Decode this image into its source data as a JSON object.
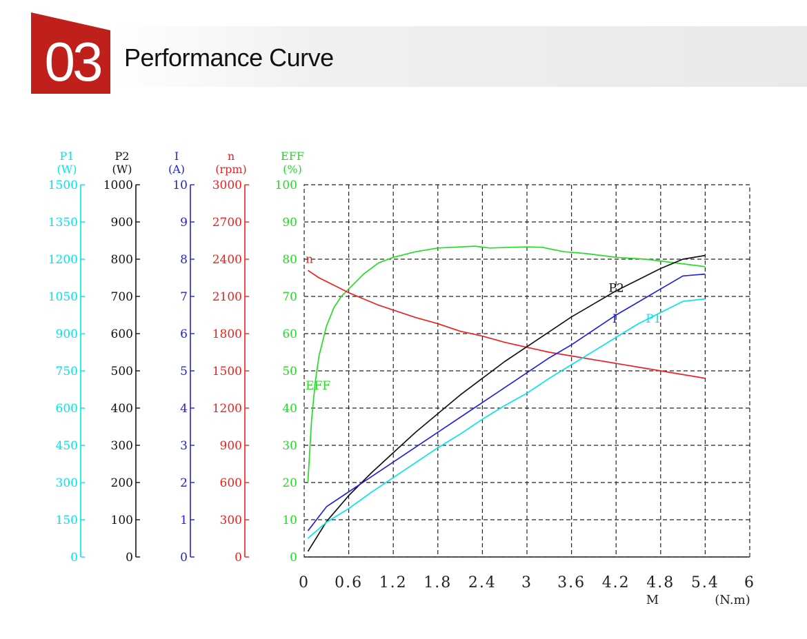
{
  "header": {
    "section_number": "03",
    "title": "Performance Curve",
    "accent_color": "#c0201c"
  },
  "chart_data": {
    "type": "line",
    "title": "",
    "xlabel": "M",
    "xunit": "(N.m)",
    "xlim": [
      0,
      6
    ],
    "x_ticks": [
      "0",
      "0.6",
      "1.2",
      "1.8",
      "2.4",
      "3",
      "3.6",
      "4.2",
      "4.8",
      "5.4",
      "6"
    ],
    "grid": true,
    "axes": [
      {
        "name": "P1",
        "unit": "(W)",
        "color": "#00e5ee",
        "min": 0,
        "max": 1500,
        "ticks": [
          "0",
          "150",
          "300",
          "450",
          "600",
          "750",
          "900",
          "1050",
          "1200",
          "1350",
          "1500"
        ]
      },
      {
        "name": "P2",
        "unit": "(W)",
        "color": "#111111",
        "min": 0,
        "max": 1000,
        "ticks": [
          "0",
          "100",
          "200",
          "300",
          "400",
          "500",
          "600",
          "700",
          "800",
          "900",
          "1000"
        ]
      },
      {
        "name": "I",
        "unit": "(A)",
        "color": "#2020e0",
        "min": 0,
        "max": 10,
        "ticks": [
          "0",
          "1",
          "2",
          "3",
          "4",
          "5",
          "6",
          "7",
          "8",
          "9",
          "10"
        ]
      },
      {
        "name": "n",
        "unit": "(rpm)",
        "color": "#ee2020",
        "min": 0,
        "max": 3000,
        "ticks": [
          "0",
          "300",
          "600",
          "900",
          "1200",
          "1500",
          "1800",
          "2100",
          "2400",
          "2700",
          "3000"
        ]
      },
      {
        "name": "EFF",
        "unit": "(%)",
        "color": "#22dd22",
        "min": 0,
        "max": 100,
        "ticks": [
          "0",
          "10",
          "20",
          "30",
          "40",
          "50",
          "60",
          "70",
          "80",
          "90",
          "100"
        ]
      }
    ],
    "series": [
      {
        "name": "EFF",
        "axis": 4,
        "color": "#22dd22",
        "label_at": [
          0.02,
          45
        ],
        "x": [
          0.05,
          0.1,
          0.15,
          0.2,
          0.3,
          0.4,
          0.5,
          0.6,
          0.8,
          1.0,
          1.2,
          1.5,
          1.8,
          2.1,
          2.3,
          2.5,
          2.8,
          3.0,
          3.2,
          3.5,
          3.8,
          4.2,
          4.6,
          5.0,
          5.4
        ],
        "y": [
          20,
          37,
          47,
          54,
          62,
          67,
          70,
          72,
          76,
          79,
          80.5,
          82,
          83,
          83.3,
          83.5,
          83,
          83.2,
          83.3,
          83.2,
          82,
          81.5,
          80.5,
          80,
          79,
          78
        ]
      },
      {
        "name": "n",
        "axis": 3,
        "color": "#ee2020",
        "label_at": [
          0.02,
          2370
        ],
        "x": [
          0.05,
          0.2,
          0.4,
          0.6,
          0.8,
          1.0,
          1.2,
          1.5,
          1.8,
          2.1,
          2.4,
          2.7,
          3.0,
          3.3,
          3.6,
          3.9,
          4.2,
          4.5,
          4.8,
          5.1,
          5.4
        ],
        "y": [
          2310,
          2250,
          2190,
          2130,
          2080,
          2030,
          1990,
          1930,
          1880,
          1820,
          1780,
          1730,
          1690,
          1650,
          1620,
          1590,
          1560,
          1530,
          1500,
          1470,
          1440
        ]
      },
      {
        "name": "P2",
        "axis": 1,
        "color": "#111111",
        "label_at": [
          4.1,
          712
        ],
        "x": [
          0.05,
          0.3,
          0.6,
          0.9,
          1.2,
          1.5,
          1.8,
          2.1,
          2.4,
          2.7,
          3.0,
          3.3,
          3.6,
          3.9,
          4.2,
          4.5,
          4.8,
          5.1,
          5.4
        ],
        "y": [
          15,
          95,
          165,
          225,
          280,
          335,
          385,
          435,
          480,
          525,
          565,
          605,
          645,
          680,
          715,
          745,
          775,
          800,
          810
        ]
      },
      {
        "name": "I",
        "axis": 2,
        "color": "#2020e0",
        "label_at": [
          4.15,
          6.3
        ],
        "x": [
          0.05,
          0.3,
          0.6,
          0.9,
          1.2,
          1.5,
          1.8,
          2.1,
          2.4,
          2.7,
          3.0,
          3.3,
          3.6,
          3.9,
          4.2,
          4.5,
          4.8,
          5.1,
          5.4
        ],
        "y": [
          0.7,
          1.35,
          1.75,
          2.15,
          2.55,
          2.95,
          3.35,
          3.75,
          4.15,
          4.55,
          4.95,
          5.35,
          5.7,
          6.1,
          6.5,
          6.85,
          7.2,
          7.55,
          7.6
        ]
      },
      {
        "name": "P1",
        "axis": 0,
        "color": "#00e5ee",
        "label_at": [
          4.6,
          945
        ],
        "x": [
          0.05,
          0.3,
          0.6,
          0.9,
          1.2,
          1.5,
          1.8,
          2.1,
          2.4,
          2.7,
          3.0,
          3.3,
          3.6,
          3.9,
          4.2,
          4.5,
          4.8,
          5.1,
          5.4
        ],
        "y": [
          75,
          140,
          195,
          260,
          320,
          380,
          440,
          495,
          555,
          610,
          660,
          720,
          775,
          830,
          885,
          940,
          985,
          1030,
          1040
        ]
      }
    ]
  }
}
